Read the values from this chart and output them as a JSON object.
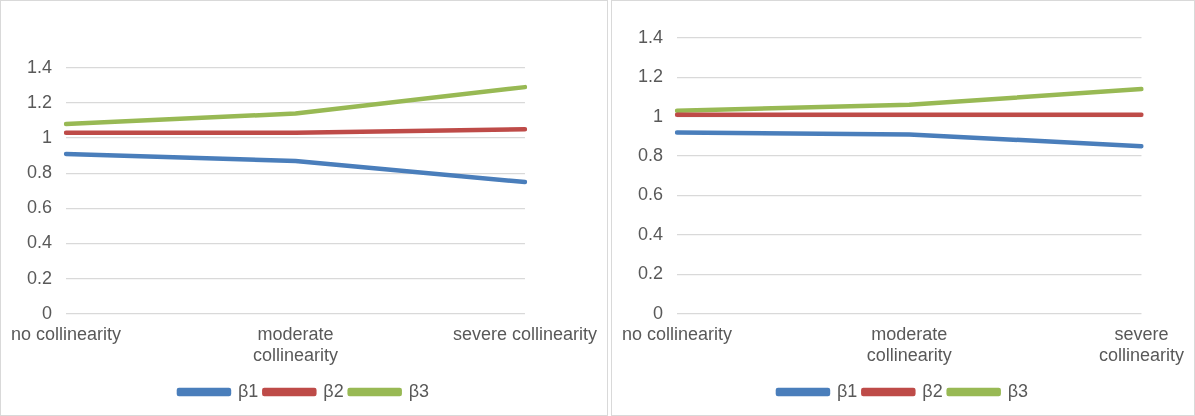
{
  "chart_data": [
    {
      "type": "line",
      "categories": [
        "no collinearity",
        "moderate collinearity",
        "severe collinearity"
      ],
      "series": [
        {
          "name": "β1",
          "color": "#4a7ebb",
          "values": [
            0.91,
            0.87,
            0.75
          ]
        },
        {
          "name": "β2",
          "color": "#be4b48",
          "values": [
            1.03,
            1.03,
            1.05
          ]
        },
        {
          "name": "β3",
          "color": "#98b954",
          "values": [
            1.08,
            1.14,
            1.29
          ]
        }
      ],
      "ylim": [
        0,
        1.4
      ],
      "yticks": [
        0,
        0.2,
        0.4,
        0.6,
        0.8,
        1,
        1.2,
        1.4
      ],
      "grid": "y",
      "legend": "bottom",
      "marker": "none"
    },
    {
      "type": "line",
      "categories": [
        "no collinearity",
        "moderate collinearity",
        "severe collinearity"
      ],
      "series": [
        {
          "name": "β1",
          "color": "#4a7ebb",
          "values": [
            0.92,
            0.91,
            0.85
          ]
        },
        {
          "name": "β2",
          "color": "#be4b48",
          "values": [
            1.01,
            1.01,
            1.01
          ]
        },
        {
          "name": "β3",
          "color": "#98b954",
          "values": [
            1.03,
            1.06,
            1.14
          ]
        }
      ],
      "ylim": [
        0,
        1.4
      ],
      "yticks": [
        0,
        0.2,
        0.4,
        0.6,
        0.8,
        1,
        1.2,
        1.4
      ],
      "grid": "y",
      "legend": "bottom",
      "marker": "none"
    }
  ]
}
